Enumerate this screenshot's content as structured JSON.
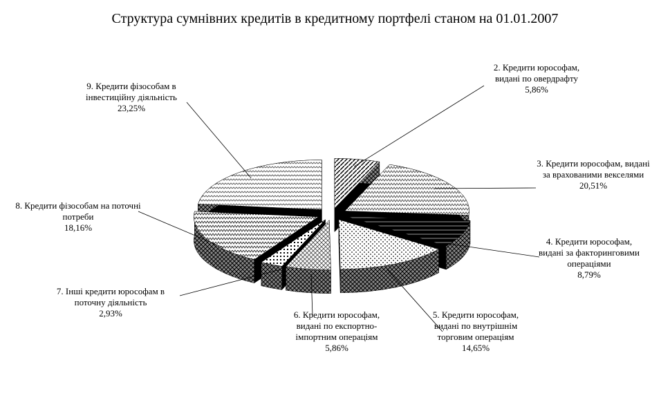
{
  "chart_data": {
    "type": "pie",
    "title": "Структура сумнівних кредитів в кредитному портфелі станом на 01.01.2007",
    "categories": [
      "2. Кредити юрософам, видані по овердрафту",
      "3. Кредити юрософам, видані за врахованими векселями",
      "4. Кредити юрософам, видані за факторинговими операціями",
      "5. Кредити юрософам, видані по внутрішнім торговим операціям",
      "6. Кредити юрософам, видані по експортно-імпортним операціям",
      "7. Інші кредити юрософам в поточну діяльність",
      "8. Кредити фізособам на поточні потреби",
      "9. Кредити фізособам в інвестиційну діяльність"
    ],
    "values": [
      5.86,
      20.51,
      8.79,
      14.65,
      5.86,
      2.93,
      18.16,
      23.25
    ],
    "value_labels": [
      "5,86%",
      "20,51%",
      "8,79%",
      "14,65%",
      "5,86%",
      "2,93%",
      "18,16%",
      "23,25%"
    ]
  }
}
